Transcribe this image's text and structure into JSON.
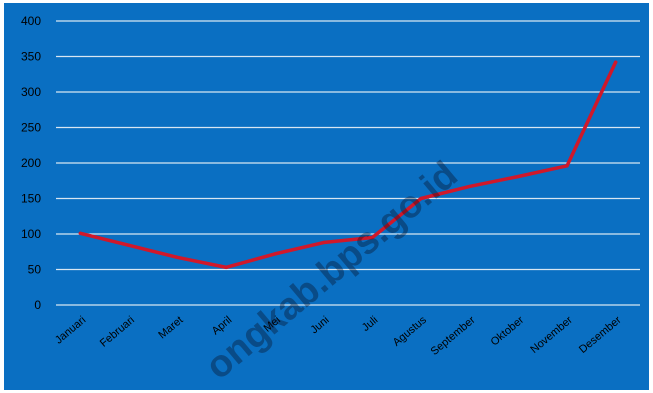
{
  "colors": {
    "background": "#0a6fc2",
    "gridline": "#d8e6f2",
    "line": "#d0182a",
    "text": "#000000"
  },
  "watermark": "ongkab.bps.go.id",
  "chart_data": {
    "type": "line",
    "title": "",
    "xlabel": "",
    "ylabel": "",
    "categories": [
      "Januari",
      "Februari",
      "Maret",
      "April",
      "Mei",
      "Juni",
      "Juli",
      "Agustus",
      "September",
      "Oktober",
      "November",
      "Desember"
    ],
    "series": [
      {
        "values": [
          101,
          84,
          67,
          53,
          72,
          88,
          95,
          150,
          167,
          181,
          196,
          342
        ]
      }
    ],
    "ylim": [
      0,
      400
    ],
    "yticks": [
      0,
      50,
      100,
      150,
      200,
      250,
      300,
      350,
      400
    ],
    "grid": true,
    "legend": "none"
  }
}
